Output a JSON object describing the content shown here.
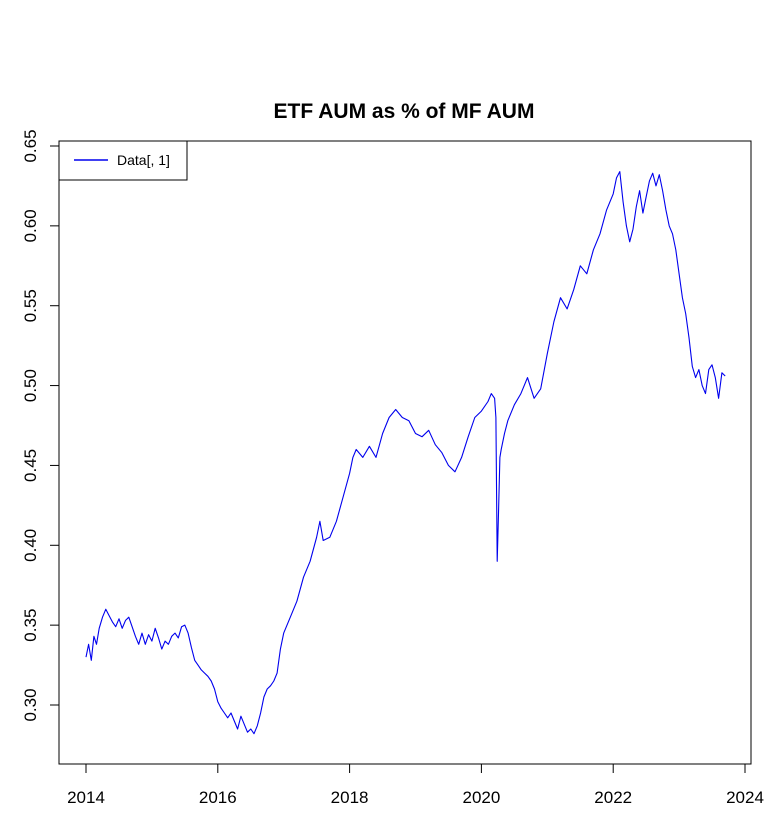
{
  "chart_data": {
    "type": "line",
    "title": "ETF AUM as % of MF AUM",
    "xlabel": "",
    "ylabel": "",
    "xlim": [
      2014,
      2024
    ],
    "ylim": [
      0.27,
      0.65
    ],
    "xticks": [
      2014,
      2016,
      2018,
      2020,
      2022,
      2024
    ],
    "yticks": [
      0.3,
      0.35,
      0.4,
      0.45,
      0.5,
      0.55,
      0.6,
      0.65
    ],
    "ytick_labels": [
      "0.30",
      "0.35",
      "0.40",
      "0.45",
      "0.50",
      "0.55",
      "0.60",
      "0.65"
    ],
    "grid": false,
    "legend": {
      "position": "top-left",
      "entries": [
        "Data[, 1]"
      ]
    },
    "series": [
      {
        "name": "Data[, 1]",
        "color": "#0000ee",
        "x": [
          2014.0,
          2014.04,
          2014.08,
          2014.12,
          2014.16,
          2014.2,
          2014.25,
          2014.3,
          2014.35,
          2014.4,
          2014.45,
          2014.5,
          2014.55,
          2014.6,
          2014.65,
          2014.7,
          2014.75,
          2014.8,
          2014.85,
          2014.9,
          2014.95,
          2015.0,
          2015.05,
          2015.1,
          2015.15,
          2015.2,
          2015.25,
          2015.3,
          2015.35,
          2015.4,
          2015.45,
          2015.5,
          2015.55,
          2015.6,
          2015.65,
          2015.7,
          2015.75,
          2015.8,
          2015.85,
          2015.9,
          2015.95,
          2016.0,
          2016.05,
          2016.1,
          2016.15,
          2016.2,
          2016.25,
          2016.3,
          2016.35,
          2016.4,
          2016.45,
          2016.5,
          2016.55,
          2016.6,
          2016.65,
          2016.7,
          2016.75,
          2016.8,
          2016.85,
          2016.9,
          2016.95,
          2017.0,
          2017.1,
          2017.2,
          2017.3,
          2017.4,
          2017.5,
          2017.55,
          2017.6,
          2017.7,
          2017.8,
          2017.9,
          2018.0,
          2018.05,
          2018.1,
          2018.2,
          2018.3,
          2018.4,
          2018.5,
          2018.6,
          2018.7,
          2018.8,
          2018.9,
          2019.0,
          2019.1,
          2019.2,
          2019.3,
          2019.4,
          2019.5,
          2019.6,
          2019.7,
          2019.8,
          2019.9,
          2020.0,
          2020.1,
          2020.15,
          2020.2,
          2020.22,
          2020.24,
          2020.26,
          2020.28,
          2020.3,
          2020.35,
          2020.4,
          2020.5,
          2020.6,
          2020.7,
          2020.8,
          2020.9,
          2021.0,
          2021.1,
          2021.2,
          2021.3,
          2021.4,
          2021.5,
          2021.6,
          2021.7,
          2021.8,
          2021.9,
          2022.0,
          2022.05,
          2022.1,
          2022.15,
          2022.2,
          2022.25,
          2022.3,
          2022.35,
          2022.4,
          2022.45,
          2022.5,
          2022.55,
          2022.6,
          2022.65,
          2022.7,
          2022.75,
          2022.8,
          2022.85,
          2022.9,
          2022.95,
          2023.0,
          2023.05,
          2023.1,
          2023.15,
          2023.2,
          2023.25,
          2023.3,
          2023.35,
          2023.4,
          2023.45,
          2023.5,
          2023.55,
          2023.6,
          2023.65,
          2023.7
        ],
        "y": [
          0.33,
          0.338,
          0.328,
          0.343,
          0.338,
          0.348,
          0.355,
          0.36,
          0.356,
          0.352,
          0.349,
          0.354,
          0.348,
          0.353,
          0.355,
          0.349,
          0.343,
          0.338,
          0.345,
          0.338,
          0.344,
          0.34,
          0.348,
          0.342,
          0.335,
          0.34,
          0.338,
          0.343,
          0.345,
          0.342,
          0.349,
          0.35,
          0.345,
          0.336,
          0.328,
          0.325,
          0.322,
          0.32,
          0.318,
          0.315,
          0.31,
          0.302,
          0.298,
          0.295,
          0.292,
          0.295,
          0.29,
          0.285,
          0.293,
          0.288,
          0.283,
          0.285,
          0.282,
          0.287,
          0.295,
          0.305,
          0.31,
          0.312,
          0.315,
          0.32,
          0.335,
          0.345,
          0.355,
          0.365,
          0.38,
          0.39,
          0.405,
          0.415,
          0.403,
          0.405,
          0.415,
          0.43,
          0.445,
          0.455,
          0.46,
          0.455,
          0.462,
          0.455,
          0.47,
          0.48,
          0.485,
          0.48,
          0.478,
          0.47,
          0.468,
          0.472,
          0.463,
          0.458,
          0.45,
          0.446,
          0.455,
          0.468,
          0.48,
          0.484,
          0.49,
          0.495,
          0.492,
          0.48,
          0.39,
          0.42,
          0.455,
          0.46,
          0.47,
          0.478,
          0.488,
          0.495,
          0.505,
          0.492,
          0.498,
          0.52,
          0.54,
          0.555,
          0.548,
          0.56,
          0.575,
          0.57,
          0.585,
          0.595,
          0.61,
          0.62,
          0.63,
          0.634,
          0.615,
          0.6,
          0.59,
          0.598,
          0.612,
          0.622,
          0.608,
          0.618,
          0.628,
          0.633,
          0.625,
          0.632,
          0.622,
          0.61,
          0.6,
          0.595,
          0.585,
          0.57,
          0.555,
          0.545,
          0.53,
          0.512,
          0.505,
          0.51,
          0.5,
          0.495,
          0.51,
          0.513,
          0.505,
          0.492,
          0.508,
          0.506
        ]
      }
    ]
  }
}
